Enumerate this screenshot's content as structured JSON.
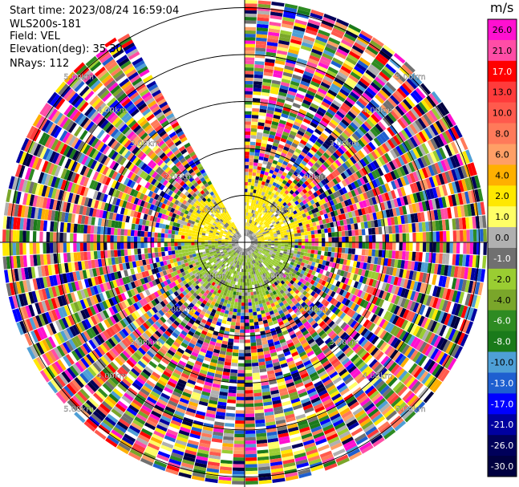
{
  "header": {
    "start_time": "Start time: 2023/08/24 16:59:04",
    "instrument": "WLS200s-181",
    "field": "Field: VEL",
    "elevation": "Elevation(deg): 35.30",
    "nrays": "NRays: 112"
  },
  "colorbar": {
    "unit": "m/s",
    "labels": [
      "26.0",
      "21.0",
      "17.0",
      "13.0",
      "10.0",
      "8.0",
      "6.0",
      "4.0",
      "2.0",
      "1.0",
      "0.0",
      "-1.0",
      "-2.0",
      "-4.0",
      "-6.0",
      "-8.0",
      "-10.0",
      "-13.0",
      "-17.0",
      "-21.0",
      "-26.0",
      "-30.0"
    ],
    "colors": [
      "#ff10d0",
      "#ff4da6",
      "#ff0000",
      "#ff3b3b",
      "#ff5a4d",
      "#ff7a5a",
      "#ff9f66",
      "#ffb000",
      "#ffe800",
      "#ffff66",
      "#b0b0b0",
      "#707070",
      "#9acd32",
      "#7aa62a",
      "#2e8b22",
      "#1a7a1a",
      "#4e9fd6",
      "#1e5fd0",
      "#0000ff",
      "#0000a0",
      "#00005a",
      "#000040"
    ]
  },
  "chart_data": {
    "type": "ppi_polar_velocity",
    "field": "VEL",
    "elevation_deg": 35.3,
    "nrays": 112,
    "range_rings_km": [
      1.0,
      2.0,
      3.0,
      4.0,
      5.0
    ],
    "ring_labels": [
      "1.00km",
      "2.00km",
      "3.00km",
      "4.00km",
      "5.00km"
    ],
    "max_range_km": 5.1,
    "data_gap_azimuth_deg": [
      330,
      360
    ],
    "near_field": {
      "range_km": [
        0,
        1.6
      ],
      "dominant_velocity_ms": {
        "north_half": 2.0,
        "south_half": -2.0,
        "center": 0.0
      }
    },
    "far_field": {
      "range_km": [
        1.6,
        5.1
      ],
      "character": "noise (random velocities across full scale)"
    },
    "velocity_range_ms": [
      -30.0,
      26.0
    ]
  }
}
